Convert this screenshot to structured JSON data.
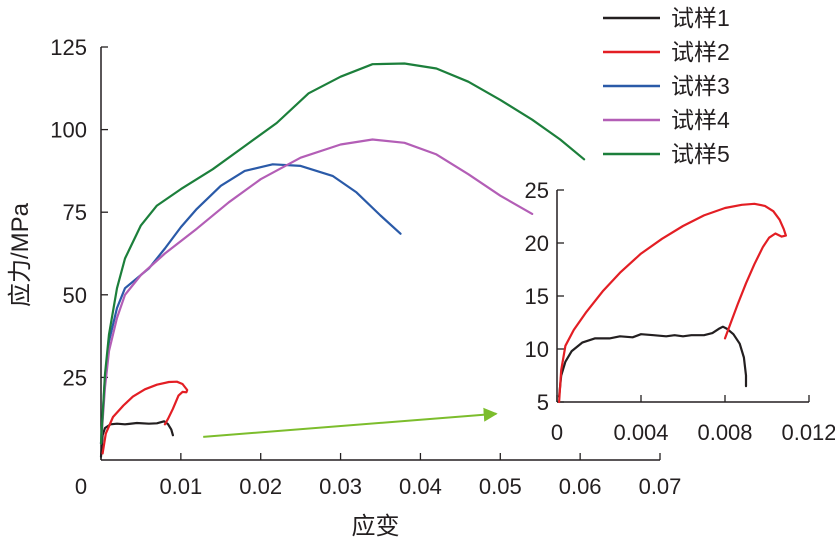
{
  "chart_data": [
    {
      "type": "line",
      "role": "main",
      "xlabel": "应变",
      "ylabel": "应力/MPa",
      "xlim": [
        0,
        0.07
      ],
      "ylim": [
        0,
        125
      ],
      "xticks": [
        0,
        0.01,
        0.02,
        0.03,
        0.04,
        0.05,
        0.06,
        0.07
      ],
      "xtick_labels": [
        "0",
        "0.01",
        "0.02",
        "0.03",
        "0.04",
        "0.05",
        "0.06",
        "0.07"
      ],
      "yticks": [
        25,
        50,
        75,
        100,
        125
      ],
      "ytick_labels": [
        "25",
        "50",
        "75",
        "100",
        "125"
      ],
      "grid": false,
      "legend_position": "top-right",
      "series": [
        {
          "name": "试样1",
          "color": "#231f20",
          "points": [
            [
              0,
              1
            ],
            [
              0.0002,
              7.5
            ],
            [
              0.0005,
              9.7
            ],
            [
              0.0012,
              10.8
            ],
            [
              0.002,
              11
            ],
            [
              0.003,
              10.8
            ],
            [
              0.0045,
              11.2
            ],
            [
              0.006,
              11
            ],
            [
              0.007,
              11.1
            ],
            [
              0.0079,
              11.7
            ],
            [
              0.0084,
              10.8
            ],
            [
              0.0088,
              9.2
            ],
            [
              0.009,
              7.5
            ]
          ]
        },
        {
          "name": "试样2",
          "color": "#e31e24",
          "points": [
            [
              0.0002,
              2
            ],
            [
              0.0006,
              8
            ],
            [
              0.0015,
              13
            ],
            [
              0.0028,
              16.5
            ],
            [
              0.004,
              19.2
            ],
            [
              0.0055,
              21.4
            ],
            [
              0.007,
              22.8
            ],
            [
              0.0085,
              23.6
            ],
            [
              0.0095,
              23.7
            ],
            [
              0.0102,
              23
            ],
            [
              0.0108,
              21.2
            ],
            [
              0.0107,
              20.5
            ],
            [
              0.0102,
              20.6
            ],
            [
              0.0097,
              19.5
            ],
            [
              0.009,
              15.5
            ],
            [
              0.0084,
              12.5
            ],
            [
              0.008,
              10.8
            ]
          ]
        },
        {
          "name": "试样3",
          "color": "#2a5aa8",
          "points": [
            [
              0,
              5
            ],
            [
              0.0005,
              25
            ],
            [
              0.001,
              36
            ],
            [
              0.002,
              46
            ],
            [
              0.003,
              52
            ],
            [
              0.0045,
              55
            ],
            [
              0.006,
              58
            ],
            [
              0.008,
              64
            ],
            [
              0.01,
              70.5
            ],
            [
              0.012,
              76
            ],
            [
              0.015,
              83
            ],
            [
              0.018,
              87.5
            ],
            [
              0.0215,
              89.5
            ],
            [
              0.025,
              89
            ],
            [
              0.029,
              86
            ],
            [
              0.032,
              81
            ],
            [
              0.035,
              74
            ],
            [
              0.0375,
              68.5
            ]
          ]
        },
        {
          "name": "试样4",
          "color": "#b35eb6",
          "points": [
            [
              0,
              5
            ],
            [
              0.0005,
              22
            ],
            [
              0.001,
              33
            ],
            [
              0.002,
              43
            ],
            [
              0.003,
              50
            ],
            [
              0.005,
              56
            ],
            [
              0.008,
              62.5
            ],
            [
              0.012,
              70
            ],
            [
              0.016,
              78
            ],
            [
              0.02,
              85
            ],
            [
              0.025,
              91.5
            ],
            [
              0.03,
              95.5
            ],
            [
              0.034,
              97
            ],
            [
              0.038,
              96
            ],
            [
              0.042,
              92.5
            ],
            [
              0.046,
              86.5
            ],
            [
              0.05,
              80
            ],
            [
              0.054,
              74.5
            ]
          ]
        },
        {
          "name": "试样5",
          "color": "#1c7f3b",
          "points": [
            [
              0,
              5
            ],
            [
              0.0005,
              26
            ],
            [
              0.001,
              38
            ],
            [
              0.002,
              52
            ],
            [
              0.003,
              61
            ],
            [
              0.005,
              71
            ],
            [
              0.007,
              77
            ],
            [
              0.01,
              82
            ],
            [
              0.014,
              88
            ],
            [
              0.018,
              95
            ],
            [
              0.022,
              102
            ],
            [
              0.026,
              111
            ],
            [
              0.03,
              116
            ],
            [
              0.034,
              119.8
            ],
            [
              0.038,
              120
            ],
            [
              0.042,
              118.5
            ],
            [
              0.046,
              114.5
            ],
            [
              0.05,
              109
            ],
            [
              0.054,
              103
            ],
            [
              0.0575,
              97
            ],
            [
              0.0605,
              91
            ]
          ]
        }
      ],
      "annotation": {
        "type": "arrow",
        "color": "#7cbd2c",
        "from": [
          0.0128,
          7
        ],
        "to": [
          0.0495,
          14
        ]
      }
    },
    {
      "type": "line",
      "role": "inset",
      "xlim": [
        0,
        0.012
      ],
      "ylim": [
        5,
        25
      ],
      "xticks": [
        0,
        0.004,
        0.008,
        0.012
      ],
      "xtick_labels": [
        "0",
        "0.004",
        "0.008",
        "0.012"
      ],
      "yticks": [
        5,
        10,
        15,
        20,
        25
      ],
      "ytick_labels": [
        "5",
        "10",
        "15",
        "20",
        "25"
      ],
      "grid": false,
      "series": [
        {
          "name": "试样1",
          "color": "#231f20",
          "points": [
            [
              0.0001,
              5.5
            ],
            [
              0.0002,
              7.5
            ],
            [
              0.0004,
              8.8
            ],
            [
              0.0007,
              9.8
            ],
            [
              0.0012,
              10.6
            ],
            [
              0.0018,
              11
            ],
            [
              0.0025,
              11
            ],
            [
              0.003,
              11.2
            ],
            [
              0.0036,
              11.1
            ],
            [
              0.004,
              11.4
            ],
            [
              0.0046,
              11.3
            ],
            [
              0.0052,
              11.2
            ],
            [
              0.0056,
              11.3
            ],
            [
              0.006,
              11.2
            ],
            [
              0.0064,
              11.3
            ],
            [
              0.007,
              11.3
            ],
            [
              0.0074,
              11.5
            ],
            [
              0.0077,
              11.9
            ],
            [
              0.0079,
              12.1
            ],
            [
              0.0081,
              11.9
            ],
            [
              0.0084,
              11.4
            ],
            [
              0.0087,
              10.5
            ],
            [
              0.0089,
              9.2
            ],
            [
              0.009,
              7.5
            ],
            [
              0.009,
              6.5
            ]
          ]
        },
        {
          "name": "试样2",
          "color": "#e31e24",
          "points": [
            [
              0.0001,
              5
            ],
            [
              0.0002,
              8
            ],
            [
              0.0004,
              10.3
            ],
            [
              0.0008,
              11.8
            ],
            [
              0.0014,
              13.5
            ],
            [
              0.0022,
              15.5
            ],
            [
              0.003,
              17.2
            ],
            [
              0.004,
              19
            ],
            [
              0.005,
              20.4
            ],
            [
              0.006,
              21.6
            ],
            [
              0.007,
              22.6
            ],
            [
              0.008,
              23.3
            ],
            [
              0.0088,
              23.6
            ],
            [
              0.0094,
              23.7
            ],
            [
              0.0099,
              23.5
            ],
            [
              0.0103,
              23
            ],
            [
              0.0106,
              22.2
            ],
            [
              0.0108,
              21.3
            ],
            [
              0.0109,
              20.7
            ],
            [
              0.0107,
              20.6
            ],
            [
              0.0104,
              20.9
            ],
            [
              0.0101,
              20.5
            ],
            [
              0.0098,
              19.6
            ],
            [
              0.0094,
              18
            ],
            [
              0.009,
              16.2
            ],
            [
              0.0086,
              14.2
            ],
            [
              0.0083,
              12.6
            ],
            [
              0.008,
              11
            ]
          ]
        }
      ]
    }
  ]
}
